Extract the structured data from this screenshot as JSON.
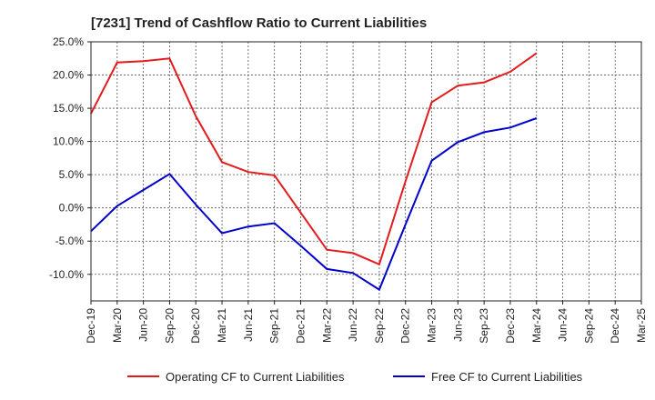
{
  "chart_data": {
    "type": "line",
    "title": "[7231]  Trend of Cashflow Ratio to Current Liabilities",
    "xlabel": "",
    "ylabel": "",
    "categories": [
      "Dec-19",
      "Mar-20",
      "Jun-20",
      "Sep-20",
      "Dec-20",
      "Mar-21",
      "Jun-21",
      "Sep-21",
      "Dec-21",
      "Mar-22",
      "Jun-22",
      "Sep-22",
      "Dec-22",
      "Mar-23",
      "Jun-23",
      "Sep-23",
      "Dec-23",
      "Mar-24",
      "Jun-24",
      "Sep-24",
      "Dec-24",
      "Mar-25"
    ],
    "y_ticks": [
      "25.0%",
      "20.0%",
      "15.0%",
      "10.0%",
      "5.0%",
      "0.0%",
      "-5.0%",
      "-10.0%"
    ],
    "ylim": [
      -14,
      25
    ],
    "grid": true,
    "legend_position": "bottom",
    "series": [
      {
        "name": "Operating CF to Current Liabilities",
        "color": "#e41a1c",
        "values": [
          14.2,
          21.9,
          22.1,
          22.5,
          13.8,
          6.9,
          5.4,
          4.9,
          -0.7,
          -6.3,
          -6.8,
          -8.5,
          4.0,
          15.9,
          18.4,
          18.9,
          20.5,
          23.3,
          null,
          null,
          null,
          null
        ]
      },
      {
        "name": "Free CF to Current Liabilities",
        "color": "#0000cc",
        "values": [
          -3.5,
          0.3,
          2.7,
          5.1,
          0.5,
          -3.8,
          -2.8,
          -2.3,
          -5.7,
          -9.2,
          -9.8,
          -12.3,
          -2.5,
          7.1,
          9.9,
          11.4,
          12.1,
          13.5,
          null,
          null,
          null,
          null
        ]
      }
    ]
  }
}
